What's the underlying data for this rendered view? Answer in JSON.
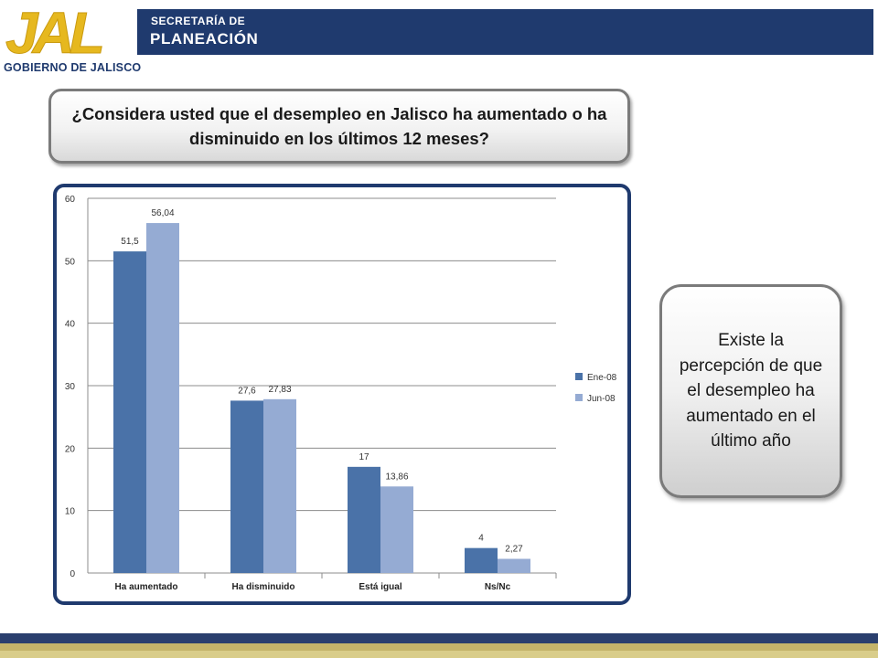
{
  "header": {
    "department_line1": "SECRETARÍA DE",
    "department_line2": "PLANEACIÓN",
    "logo_text": "JAL",
    "logo_caption": "GOBIERNO DE JALISCO"
  },
  "question": {
    "text": "¿Considera usted que el desempleo en Jalisco ha aumentado o ha disminuido  en los últimos 12 meses?"
  },
  "callout": {
    "text": "Existe la percepción de que el desempleo ha aumentado en el último año"
  },
  "colors": {
    "navy": "#1f3a6e",
    "gold": "#e6b81f",
    "series_ene": "#4a72a8",
    "series_jun": "#95abd3"
  },
  "chart_data": {
    "type": "bar",
    "categories": [
      "Ha aumentado",
      "Ha disminuido",
      "Está igual",
      "Ns/Nc"
    ],
    "series": [
      {
        "name": "Ene-08",
        "values": [
          51.5,
          27.6,
          17,
          4
        ],
        "labels": [
          "51,5",
          "27,6",
          "17",
          "4"
        ],
        "color": "#4a72a8"
      },
      {
        "name": "Jun-08",
        "values": [
          56.04,
          27.83,
          13.86,
          2.27
        ],
        "labels": [
          "56,04",
          "27,83",
          "13,86",
          "2,27"
        ],
        "color": "#95abd3"
      }
    ],
    "ylim": [
      0,
      60
    ],
    "yticks": [
      0,
      10,
      20,
      30,
      40,
      50,
      60
    ],
    "grid": true,
    "legend": "right"
  }
}
